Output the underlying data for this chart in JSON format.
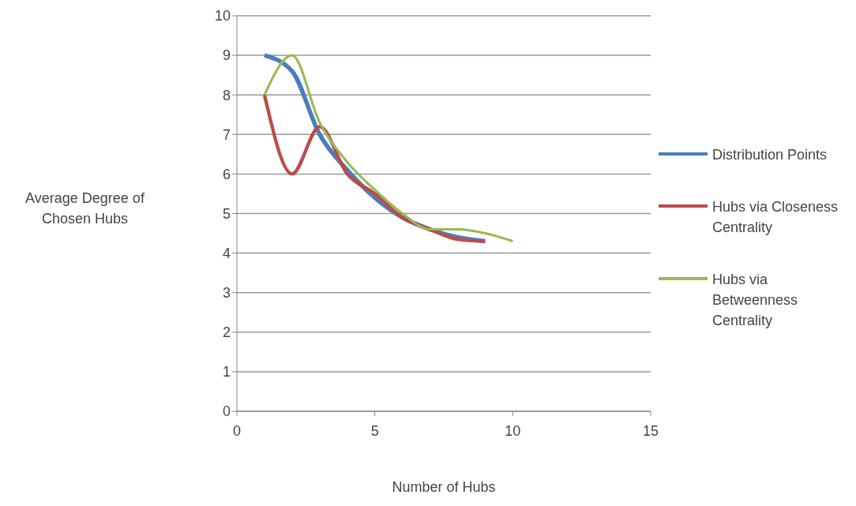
{
  "chart_data": {
    "type": "line",
    "xlabel": "Number of Hubs",
    "ylabel": "Average Degree of Chosen Hubs",
    "xlim": [
      0,
      15
    ],
    "xticks": [
      0,
      5,
      10,
      15
    ],
    "ylim": [
      0,
      10
    ],
    "yticks": [
      0,
      1,
      2,
      3,
      4,
      5,
      6,
      7,
      8,
      9,
      10
    ],
    "grid": "y",
    "legend": "right",
    "marker": "none",
    "series": [
      {
        "name": "Distribution Points",
        "color": "#4a7ebb",
        "x": [
          1,
          2,
          3,
          4,
          5,
          6,
          7,
          8,
          9
        ],
        "values": [
          9.0,
          8.6,
          7.0,
          6.1,
          5.4,
          4.9,
          4.6,
          4.4,
          4.3
        ]
      },
      {
        "name": "Hubs via Closeness Centrality",
        "color": "#be4b48",
        "x": [
          1,
          2,
          3,
          4,
          5,
          6,
          7,
          8,
          9
        ],
        "values": [
          8.0,
          6.0,
          7.2,
          6.0,
          5.5,
          4.9,
          4.6,
          4.35,
          4.3
        ]
      },
      {
        "name": "Hubs via Betweenness Centrality",
        "color": "#98b954",
        "x": [
          1,
          2,
          3,
          4,
          5,
          6,
          7,
          8,
          9,
          10
        ],
        "values": [
          8.0,
          9.0,
          7.3,
          6.3,
          5.6,
          5.0,
          4.6,
          4.6,
          4.5,
          4.3
        ]
      }
    ]
  }
}
